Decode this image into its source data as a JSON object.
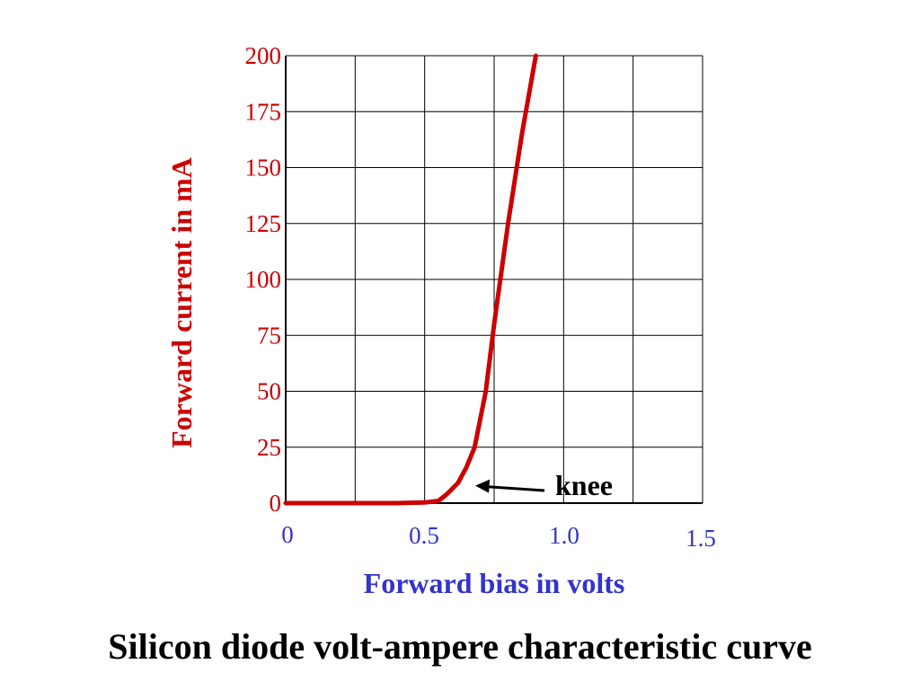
{
  "chart_data": {
    "type": "line",
    "title": "Silicon diode volt-ampere characteristic curve",
    "xlabel": "Forward bias in volts",
    "ylabel": "Forward current in mA",
    "xlim": [
      0,
      1.5
    ],
    "ylim": [
      0,
      200
    ],
    "x_ticks": [
      "0",
      "0.5",
      "1.0",
      "1.5"
    ],
    "y_ticks": [
      "0",
      "25",
      "50",
      "75",
      "100",
      "125",
      "150",
      "175",
      "200"
    ],
    "grid": true,
    "series": [
      {
        "color": "#cc0000",
        "x": [
          0,
          0.1,
          0.2,
          0.3,
          0.4,
          0.5,
          0.55,
          0.58,
          0.62,
          0.65,
          0.68,
          0.72,
          0.75,
          0.8,
          0.85,
          0.9
        ],
        "y": [
          0,
          0,
          0,
          0,
          0,
          0.3,
          1,
          4,
          9,
          16,
          25,
          50,
          80,
          125,
          165,
          200
        ]
      }
    ],
    "annotations": [
      {
        "text": "knee",
        "x": 0.65,
        "y": 7
      }
    ],
    "colors": {
      "curve": "#cc0000",
      "y_axis_text": "#cc0000",
      "x_axis_text": "#3333cc",
      "grid": "#000000"
    }
  }
}
